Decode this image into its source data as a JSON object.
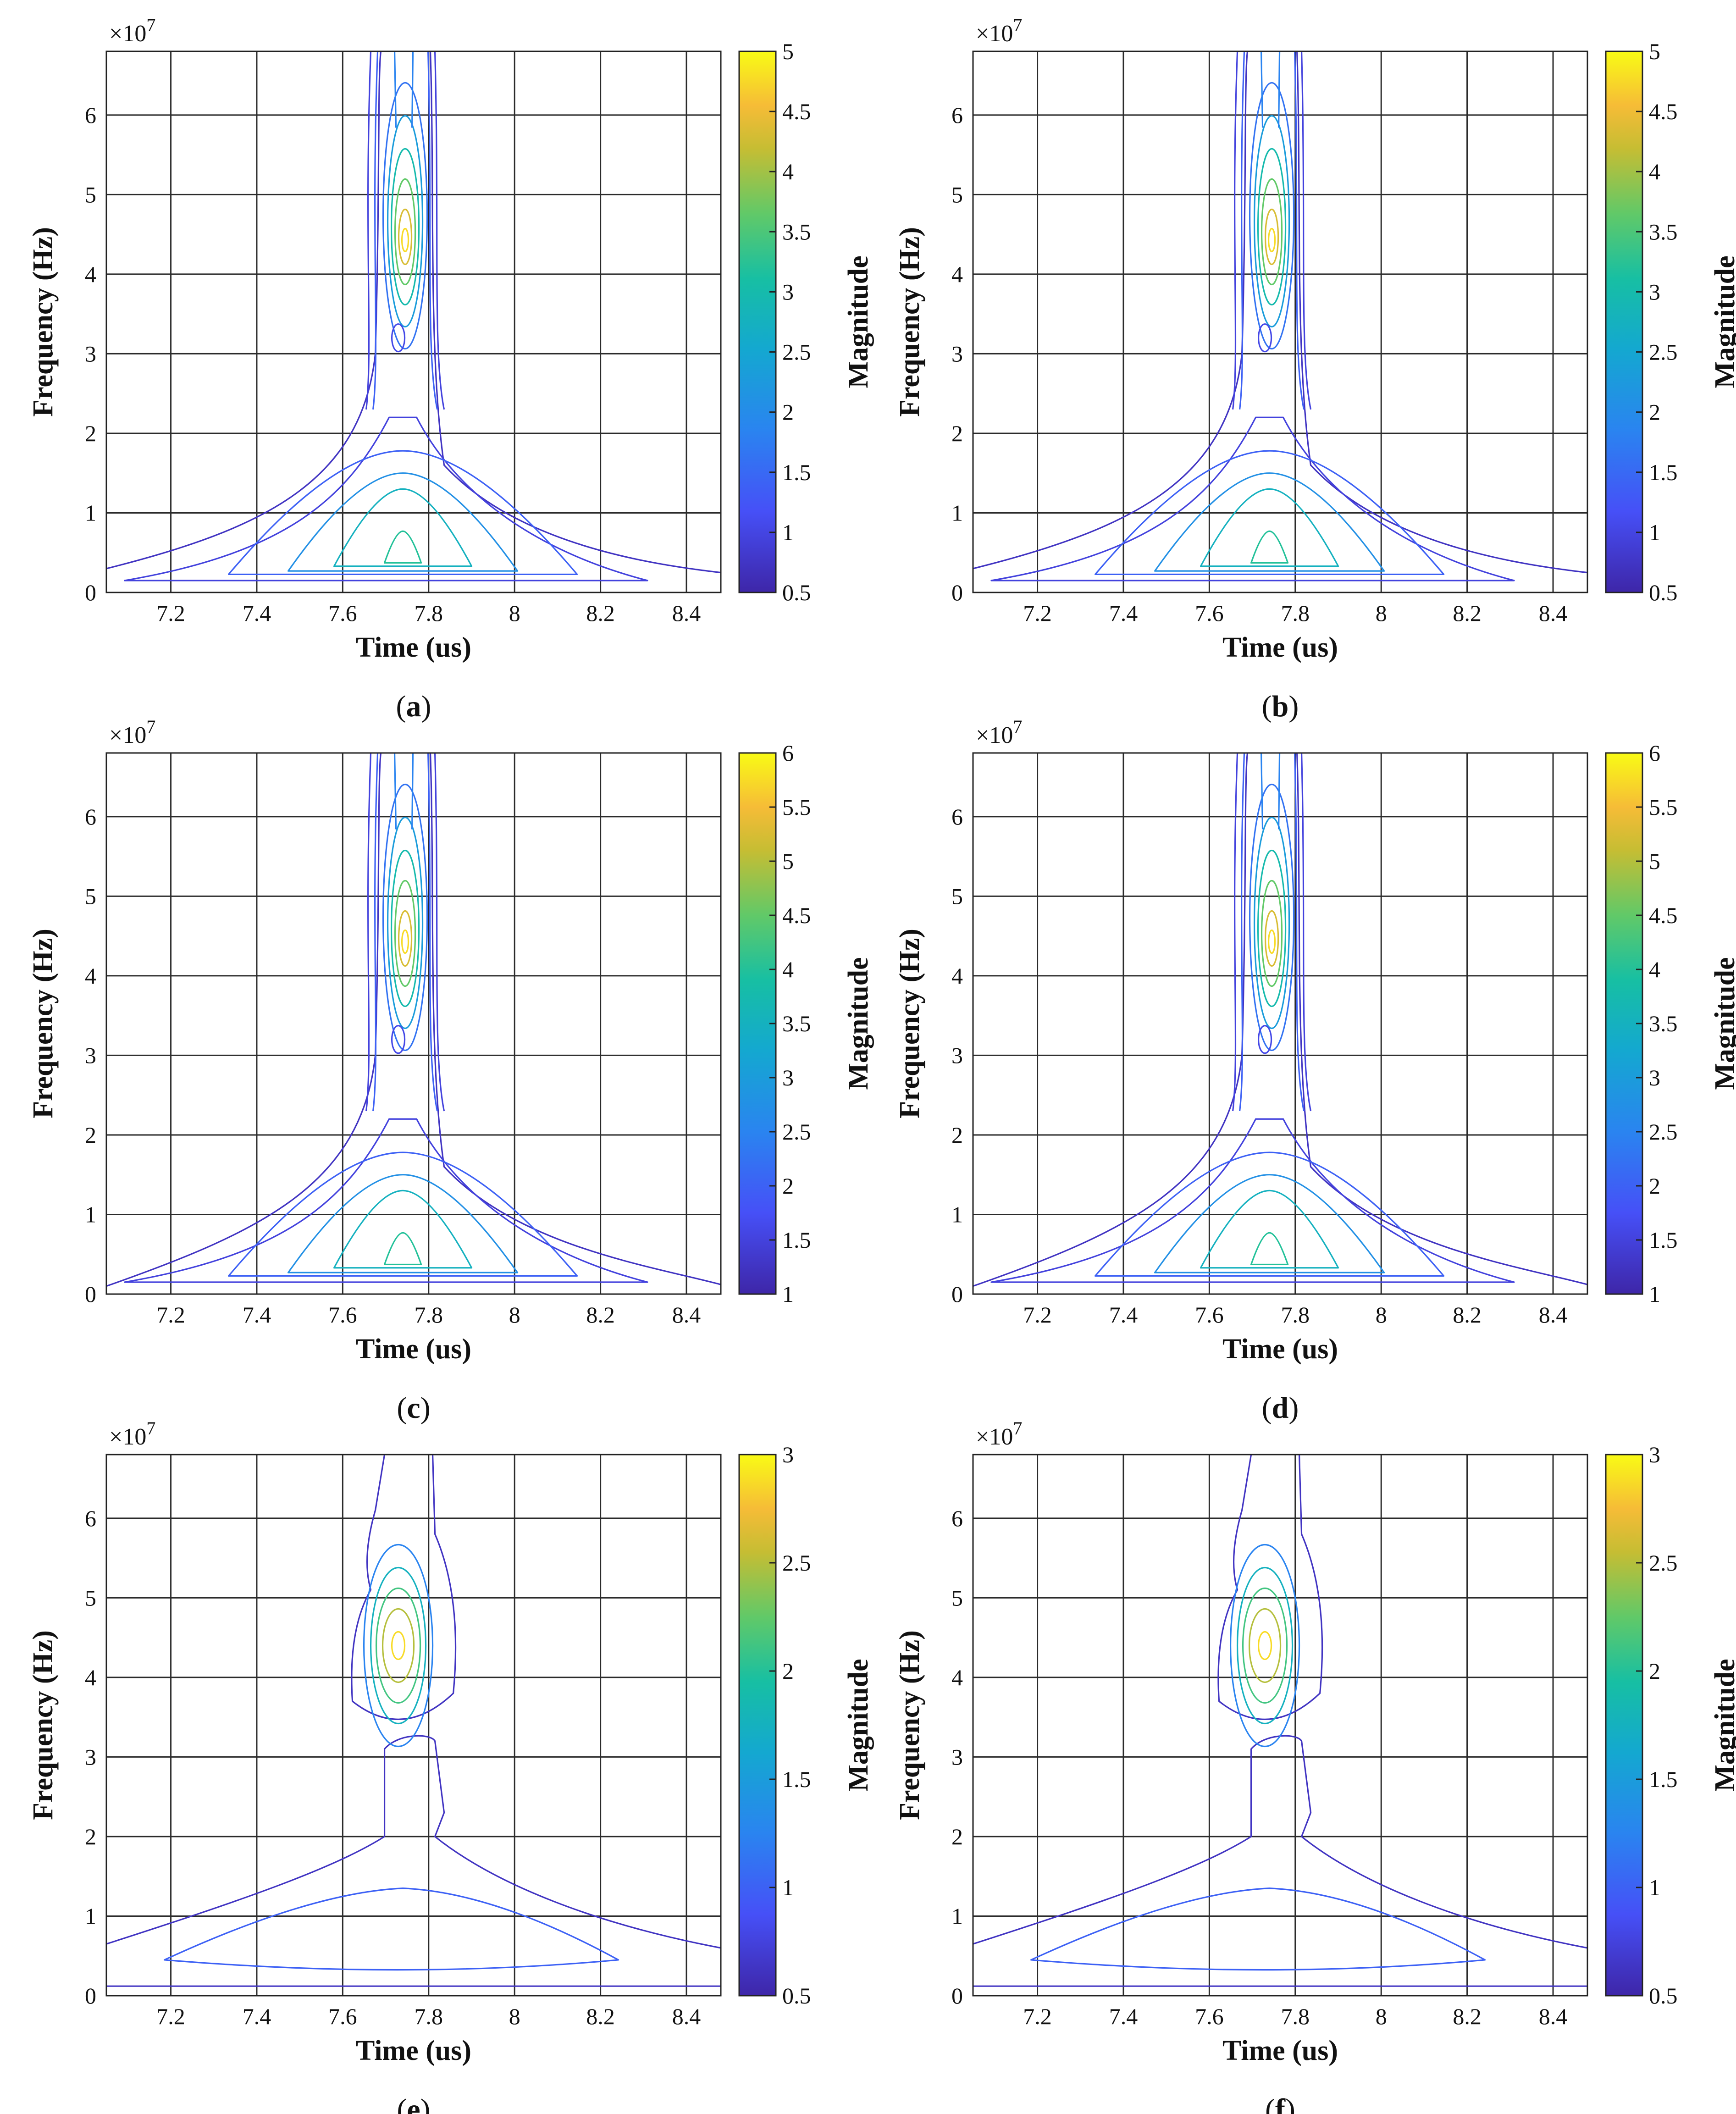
{
  "figure": {
    "panels": [
      {
        "id": "a",
        "caption": "a",
        "clim": [
          0.5,
          5
        ],
        "cticks": [
          "0.5",
          "1",
          "1.5",
          "2",
          "2.5",
          "3",
          "3.5",
          "4",
          "4.5",
          "5"
        ],
        "cbar_label": "Magnitude",
        "variant": "broad"
      },
      {
        "id": "b",
        "caption": "b",
        "clim": [
          0.5,
          5
        ],
        "cticks": [
          "0.5",
          "1",
          "1.5",
          "2",
          "2.5",
          "3",
          "3.5",
          "4",
          "4.5",
          "5"
        ],
        "cbar_label": "Magnitude",
        "variant": "broad"
      },
      {
        "id": "c",
        "caption": "c",
        "clim": [
          1,
          6
        ],
        "cticks": [
          "1",
          "1.5",
          "2",
          "2.5",
          "3",
          "3.5",
          "4",
          "4.5",
          "5",
          "5.5",
          "6"
        ],
        "cbar_label": "Magnitude",
        "variant": "narrow"
      },
      {
        "id": "d",
        "caption": "d",
        "clim": [
          1,
          6
        ],
        "cticks": [
          "1",
          "1.5",
          "2",
          "2.5",
          "3",
          "3.5",
          "4",
          "4.5",
          "5",
          "5.5",
          "6"
        ],
        "cbar_label": "Magnitude",
        "variant": "narrow"
      },
      {
        "id": "e",
        "caption": "e",
        "clim": [
          0.5,
          3
        ],
        "cticks": [
          "0.5",
          "1",
          "1.5",
          "2",
          "2.5",
          "3"
        ],
        "cbar_label": "Magnitude",
        "variant": "blob"
      },
      {
        "id": "f",
        "caption": "f",
        "clim": [
          0.5,
          3
        ],
        "cticks": [
          "0.5",
          "1",
          "1.5",
          "2",
          "2.5",
          "3"
        ],
        "cbar_label": "Magnitude",
        "variant": "blob"
      }
    ]
  },
  "chart_data": {
    "type": "contour",
    "title": "",
    "xlabel": "Time (us)",
    "ylabel": "Frequency (Hz)",
    "y_exponent_label": "×10",
    "y_exponent_power": "7",
    "xlim": [
      7.05,
      8.48
    ],
    "ylim": [
      0,
      6.8
    ],
    "xticks": [
      "7.2",
      "7.4",
      "7.6",
      "7.8",
      "8",
      "8.2",
      "8.4"
    ],
    "yticks": [
      "0",
      "1",
      "2",
      "3",
      "4",
      "5",
      "6"
    ],
    "colorbar_label": "Magnitude",
    "ridge": {
      "time_us": 7.74,
      "peak_frequency_1e7Hz": 4.4,
      "low_frequency_lobe_1e7Hz": 0.65
    }
  }
}
